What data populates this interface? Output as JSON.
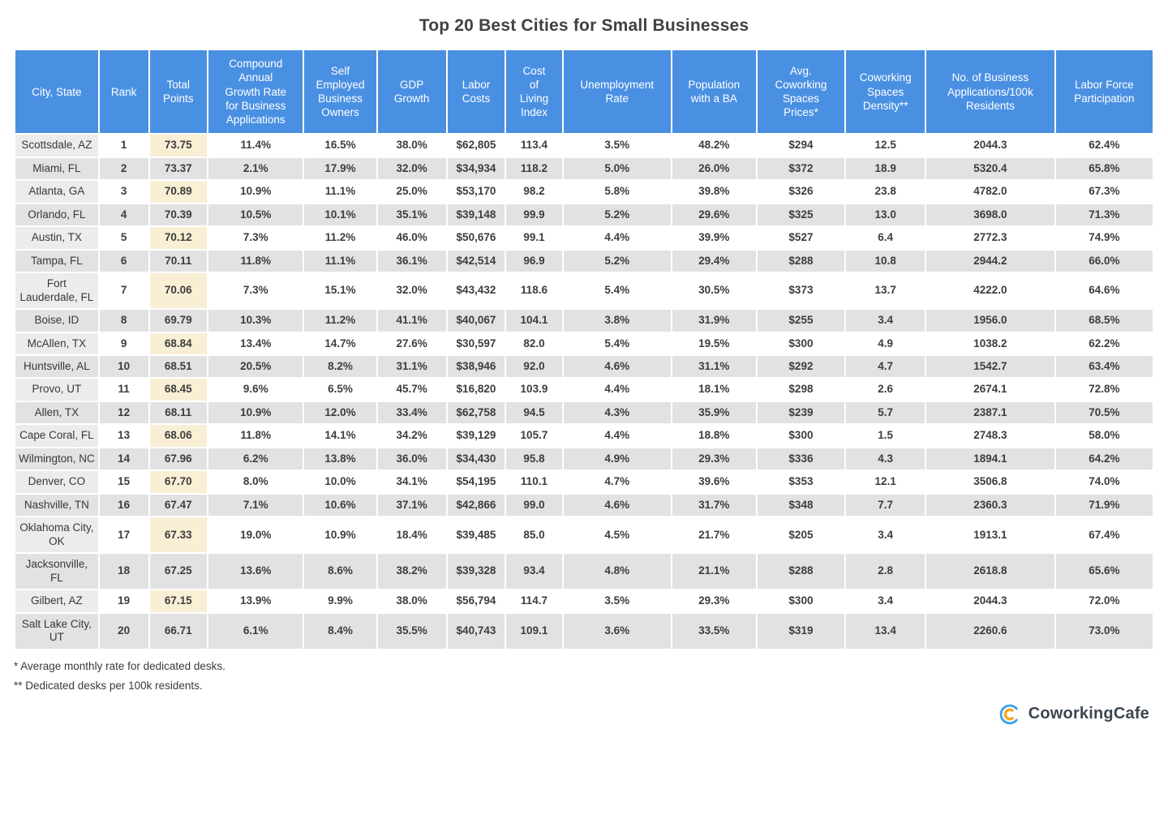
{
  "title": "Top 20 Best Cities for Small Businesses",
  "chart_data": {
    "type": "table",
    "title": "Top 20 Best Cities for Small Businesses",
    "columns": [
      "City, State",
      "Rank",
      "Total\nPoints",
      "Compound\nAnnual\nGrowth Rate\nfor Business\nApplications",
      "Self\nEmployed\nBusiness\nOwners",
      "GDP\nGrowth",
      "Labor\nCosts",
      "Cost\nof\nLiving\nIndex",
      "Unemployment\nRate",
      "Population\nwith a BA",
      "Avg.\nCoworking\nSpaces\nPrices*",
      "Coworking\nSpaces\nDensity**",
      "No. of Business\nApplications/100k\nResidents",
      "Labor Force\nParticipation"
    ],
    "column_keys": [
      "city-state",
      "rank",
      "total-points",
      "cagr-business-applications",
      "self-employed-business-owners",
      "gdp-growth",
      "labor-costs",
      "cost-of-living-index",
      "unemployment-rate",
      "population-with-ba",
      "avg-coworking-space-prices",
      "coworking-spaces-density",
      "business-applications-per-100k",
      "labor-force-participation"
    ],
    "rows": [
      [
        "Scottsdale, AZ",
        "1",
        "73.75",
        "11.4%",
        "16.5%",
        "38.0%",
        "$62,805",
        "113.4",
        "3.5%",
        "48.2%",
        "$294",
        "12.5",
        "2044.3",
        "62.4%"
      ],
      [
        "Miami, FL",
        "2",
        "73.37",
        "2.1%",
        "17.9%",
        "32.0%",
        "$34,934",
        "118.2",
        "5.0%",
        "26.0%",
        "$372",
        "18.9",
        "5320.4",
        "65.8%"
      ],
      [
        "Atlanta, GA",
        "3",
        "70.89",
        "10.9%",
        "11.1%",
        "25.0%",
        "$53,170",
        "98.2",
        "5.8%",
        "39.8%",
        "$326",
        "23.8",
        "4782.0",
        "67.3%"
      ],
      [
        "Orlando, FL",
        "4",
        "70.39",
        "10.5%",
        "10.1%",
        "35.1%",
        "$39,148",
        "99.9",
        "5.2%",
        "29.6%",
        "$325",
        "13.0",
        "3698.0",
        "71.3%"
      ],
      [
        "Austin, TX",
        "5",
        "70.12",
        "7.3%",
        "11.2%",
        "46.0%",
        "$50,676",
        "99.1",
        "4.4%",
        "39.9%",
        "$527",
        "6.4",
        "2772.3",
        "74.9%"
      ],
      [
        "Tampa, FL",
        "6",
        "70.11",
        "11.8%",
        "11.1%",
        "36.1%",
        "$42,514",
        "96.9",
        "5.2%",
        "29.4%",
        "$288",
        "10.8",
        "2944.2",
        "66.0%"
      ],
      [
        "Fort Lauderdale, FL",
        "7",
        "70.06",
        "7.3%",
        "15.1%",
        "32.0%",
        "$43,432",
        "118.6",
        "5.4%",
        "30.5%",
        "$373",
        "13.7",
        "4222.0",
        "64.6%"
      ],
      [
        "Boise, ID",
        "8",
        "69.79",
        "10.3%",
        "11.2%",
        "41.1%",
        "$40,067",
        "104.1",
        "3.8%",
        "31.9%",
        "$255",
        "3.4",
        "1956.0",
        "68.5%"
      ],
      [
        "McAllen, TX",
        "9",
        "68.84",
        "13.4%",
        "14.7%",
        "27.6%",
        "$30,597",
        "82.0",
        "5.4%",
        "19.5%",
        "$300",
        "4.9",
        "1038.2",
        "62.2%"
      ],
      [
        "Huntsville, AL",
        "10",
        "68.51",
        "20.5%",
        "8.2%",
        "31.1%",
        "$38,946",
        "92.0",
        "4.6%",
        "31.1%",
        "$292",
        "4.7",
        "1542.7",
        "63.4%"
      ],
      [
        "Provo, UT",
        "11",
        "68.45",
        "9.6%",
        "6.5%",
        "45.7%",
        "$16,820",
        "103.9",
        "4.4%",
        "18.1%",
        "$298",
        "2.6",
        "2674.1",
        "72.8%"
      ],
      [
        "Allen, TX",
        "12",
        "68.11",
        "10.9%",
        "12.0%",
        "33.4%",
        "$62,758",
        "94.5",
        "4.3%",
        "35.9%",
        "$239",
        "5.7",
        "2387.1",
        "70.5%"
      ],
      [
        "Cape Coral, FL",
        "13",
        "68.06",
        "11.8%",
        "14.1%",
        "34.2%",
        "$39,129",
        "105.7",
        "4.4%",
        "18.8%",
        "$300",
        "1.5",
        "2748.3",
        "58.0%"
      ],
      [
        "Wilmington, NC",
        "14",
        "67.96",
        "6.2%",
        "13.8%",
        "36.0%",
        "$34,430",
        "95.8",
        "4.9%",
        "29.3%",
        "$336",
        "4.3",
        "1894.1",
        "64.2%"
      ],
      [
        "Denver, CO",
        "15",
        "67.70",
        "8.0%",
        "10.0%",
        "34.1%",
        "$54,195",
        "110.1",
        "4.7%",
        "39.6%",
        "$353",
        "12.1",
        "3506.8",
        "74.0%"
      ],
      [
        "Nashville, TN",
        "16",
        "67.47",
        "7.1%",
        "10.6%",
        "37.1%",
        "$42,866",
        "99.0",
        "4.6%",
        "31.7%",
        "$348",
        "7.7",
        "2360.3",
        "71.9%"
      ],
      [
        "Oklahoma City, OK",
        "17",
        "67.33",
        "19.0%",
        "10.9%",
        "18.4%",
        "$39,485",
        "85.0",
        "4.5%",
        "21.7%",
        "$205",
        "3.4",
        "1913.1",
        "67.4%"
      ],
      [
        "Jacksonville, FL",
        "18",
        "67.25",
        "13.6%",
        "8.6%",
        "38.2%",
        "$39,328",
        "93.4",
        "4.8%",
        "21.1%",
        "$288",
        "2.8",
        "2618.8",
        "65.6%"
      ],
      [
        "Gilbert, AZ",
        "19",
        "67.15",
        "13.9%",
        "9.9%",
        "38.0%",
        "$56,794",
        "114.7",
        "3.5%",
        "29.3%",
        "$300",
        "3.4",
        "2044.3",
        "72.0%"
      ],
      [
        "Salt Lake City, UT",
        "20",
        "66.71",
        "6.1%",
        "8.4%",
        "35.5%",
        "$40,743",
        "109.1",
        "3.6%",
        "33.5%",
        "$319",
        "13.4",
        "2260.6",
        "73.0%"
      ]
    ],
    "column_widths_pct": [
      7.4,
      4.34,
      5.12,
      8.46,
      6.4,
      6.12,
      5.12,
      4.98,
      9.6,
      7.47,
      7.82,
      7.04,
      11.45,
      8.66
    ],
    "layout_hints": {
      "striped_rows": true,
      "highlight_column": "total-points",
      "grid": "white-gaps"
    }
  },
  "footnotes": [
    "* Average monthly rate for dedicated desks.",
    "** Dedicated desks per 100k residents."
  ],
  "logo": {
    "brand": "CoworkingCafe"
  },
  "colors": {
    "header_blue": "#4a90e2",
    "row_alt_gray": "#e2e2e2",
    "city_column_gray": "#ececec",
    "points_column_cream": "#f9efd5",
    "logo_blue": "#35a3ea",
    "logo_orange": "#f6a81c",
    "text_dark": "#3d3d3d"
  }
}
